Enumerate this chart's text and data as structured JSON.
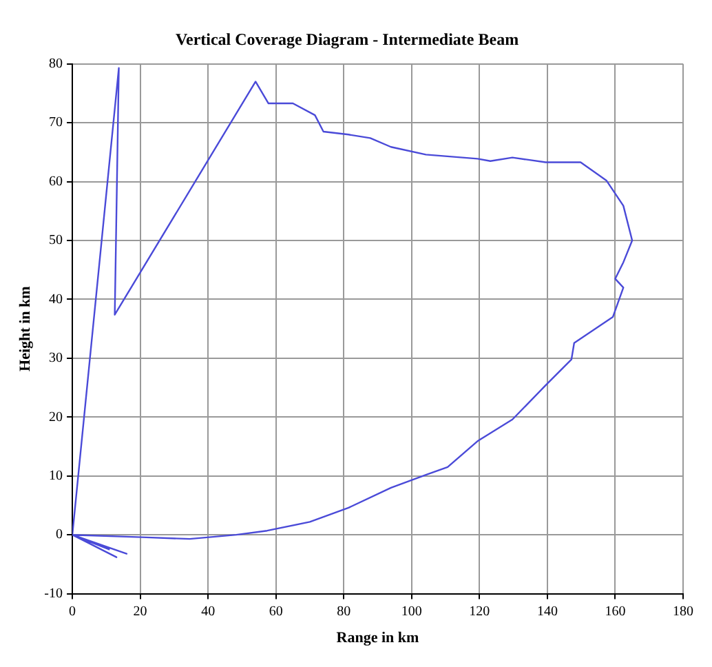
{
  "chart_data": {
    "type": "line",
    "title": "Vertical Coverage Diagram - Intermediate Beam",
    "xlabel": "Range in km",
    "ylabel": "Height in km",
    "xlim": [
      0,
      180
    ],
    "xticks": [
      0,
      20,
      40,
      60,
      80,
      100,
      120,
      140,
      160,
      180
    ],
    "ylim": [
      -10,
      80
    ],
    "yticks": [
      -10,
      0,
      10,
      20,
      30,
      40,
      50,
      60,
      70,
      80
    ],
    "grid": true,
    "marker": "none",
    "line_style": "solid",
    "series": [
      {
        "color": "#4a4ad8",
        "x": [
          0,
          13.7,
          12.5,
          54,
          57.8,
          65,
          71.5,
          74,
          81.4,
          87.8,
          93.9,
          104.2,
          119.4,
          123.2,
          129.7,
          139.5,
          149.8,
          157.4,
          162.4,
          165,
          162.4,
          160,
          162.4,
          159.3,
          147.9,
          147.1,
          139.5,
          129.7,
          119.4,
          110.6,
          104.2,
          93.9,
          81.4,
          70,
          57.4,
          48.3,
          34.6,
          20.5,
          0,
          16,
          0,
          13,
          0,
          11
        ],
        "values": [
          0,
          79.3,
          37.4,
          77,
          73.3,
          73.3,
          71.3,
          68.5,
          68,
          67.4,
          65.9,
          64.6,
          63.9,
          63.5,
          64.1,
          63.3,
          63.3,
          60.2,
          55.9,
          50,
          46.3,
          43.5,
          42,
          37,
          32.6,
          29.8,
          25.4,
          19.6,
          15.9,
          11.5,
          10.2,
          8,
          4.6,
          2.2,
          0.7,
          0,
          -0.7,
          -0.4,
          0,
          -3.2,
          0,
          -3.8,
          0,
          -2.5
        ]
      }
    ]
  }
}
